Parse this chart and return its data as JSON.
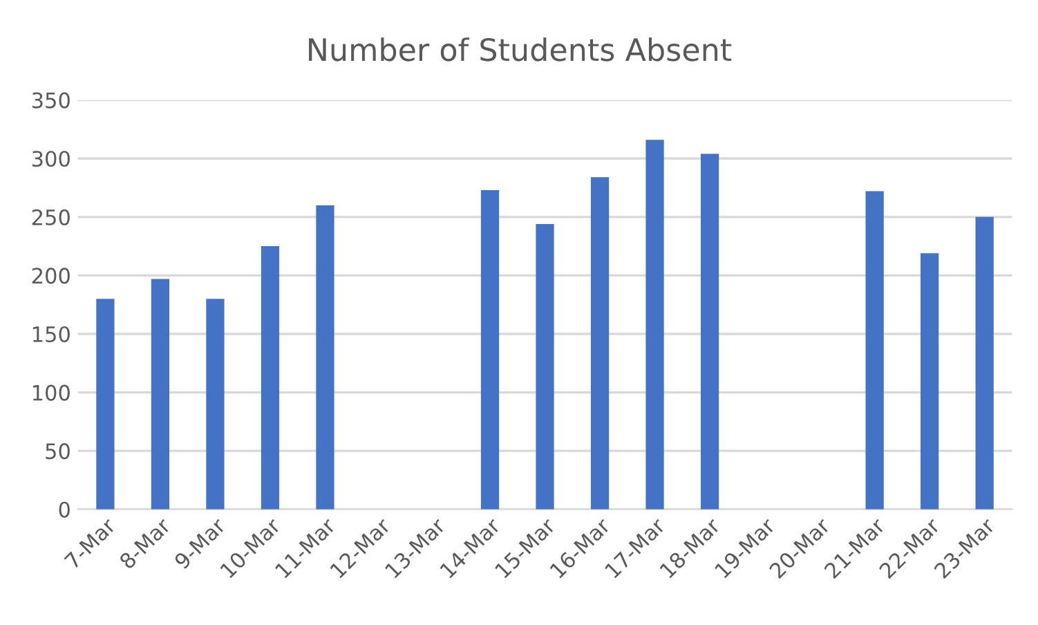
{
  "chart_data": {
    "type": "bar",
    "title": "Number of Students Absent",
    "categories": [
      "7-Mar",
      "8-Mar",
      "9-Mar",
      "10-Mar",
      "11-Mar",
      "12-Mar",
      "13-Mar",
      "14-Mar",
      "15-Mar",
      "16-Mar",
      "17-Mar",
      "18-Mar",
      "19-Mar",
      "20-Mar",
      "21-Mar",
      "22-Mar",
      "23-Mar"
    ],
    "values": [
      180,
      197,
      180,
      225,
      260,
      null,
      null,
      273,
      244,
      284,
      316,
      304,
      null,
      null,
      272,
      219,
      250
    ],
    "color": "#4472c4",
    "ylim": [
      0,
      350
    ],
    "yticks": [
      0,
      50,
      100,
      150,
      200,
      250,
      300,
      350
    ],
    "grid": "y"
  }
}
